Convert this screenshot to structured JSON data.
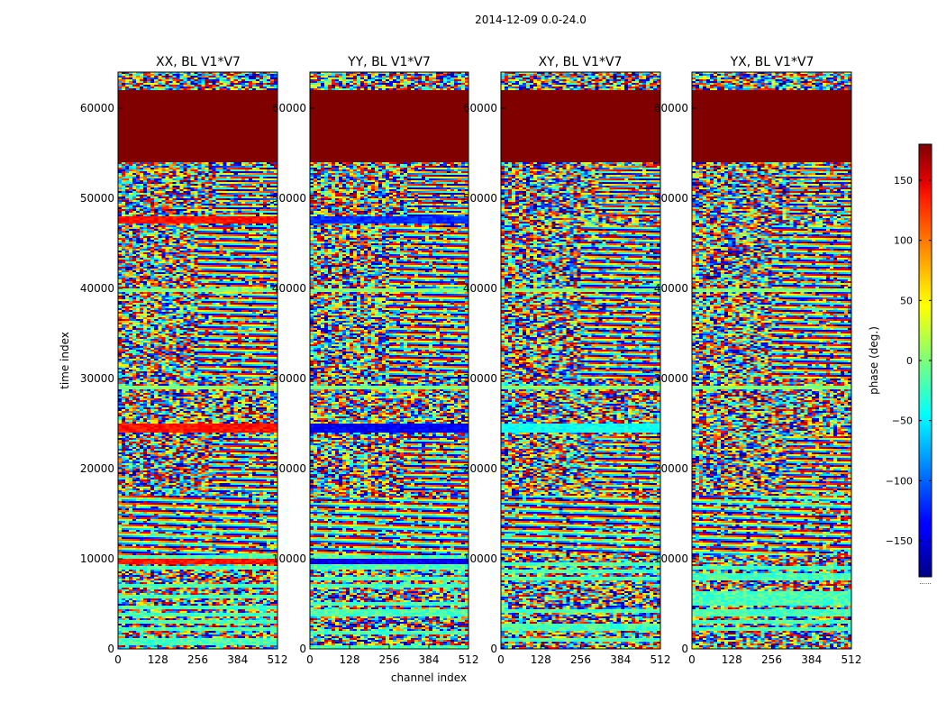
{
  "figure_title": "2014-12-09 0.0-24.0",
  "chart_data": {
    "type": "heatmap",
    "title": "2014-12-09 0.0-24.0",
    "xlabel": "channel index",
    "ylabel": "time index",
    "xlim": [
      0,
      512
    ],
    "ylim": [
      0,
      64000
    ],
    "xticks": [
      0,
      128,
      256,
      384,
      512
    ],
    "yticks": [
      0,
      10000,
      20000,
      30000,
      40000,
      50000,
      60000
    ],
    "colormap": "jet",
    "colorbar": {
      "label": "phase (deg.)",
      "range": [
        -180,
        180
      ],
      "ticks": [
        -150,
        -100,
        -50,
        0,
        50,
        100,
        150
      ],
      "tick_labels": [
        "−150",
        "−100",
        "−50",
        "0",
        "50",
        "100",
        "150"
      ]
    },
    "colorbar_footer": "......",
    "panels": [
      {
        "title": "XX, BL V1*V7",
        "notable_bands": [
          {
            "t0": 9500,
            "t1": 10000,
            "value": 130
          },
          {
            "t0": 24000,
            "t1": 25000,
            "value": 130
          },
          {
            "t0": 47300,
            "t1": 48000,
            "value": 130
          }
        ]
      },
      {
        "title": "YY, BL V1*V7",
        "notable_bands": [
          {
            "t0": 9500,
            "t1": 10000,
            "value": -140
          },
          {
            "t0": 24000,
            "t1": 25000,
            "value": -140
          },
          {
            "t0": 47300,
            "t1": 48000,
            "value": -120
          }
        ]
      },
      {
        "title": "XY, BL V1*V7",
        "notable_bands": [
          {
            "t0": 24000,
            "t1": 25000,
            "value": -40
          }
        ]
      },
      {
        "title": "YX, BL V1*V7",
        "notable_bands": []
      }
    ],
    "flagged_region": {
      "t0": 54000,
      "t1": 62000,
      "value": 180
    },
    "stripe_times": [
      29000,
      39800,
      54300
    ],
    "fringe_zones": [
      {
        "c0": 256,
        "t0": 30000,
        "t1": 47000,
        "period": 700
      },
      {
        "c0": 320,
        "t0": 48000,
        "t1": 53500,
        "period": 500
      },
      {
        "c0": 300,
        "t0": 17500,
        "t1": 23500,
        "period": 650
      },
      {
        "c0": 0,
        "t0": 10500,
        "t1": 17000,
        "period": 800
      }
    ]
  }
}
